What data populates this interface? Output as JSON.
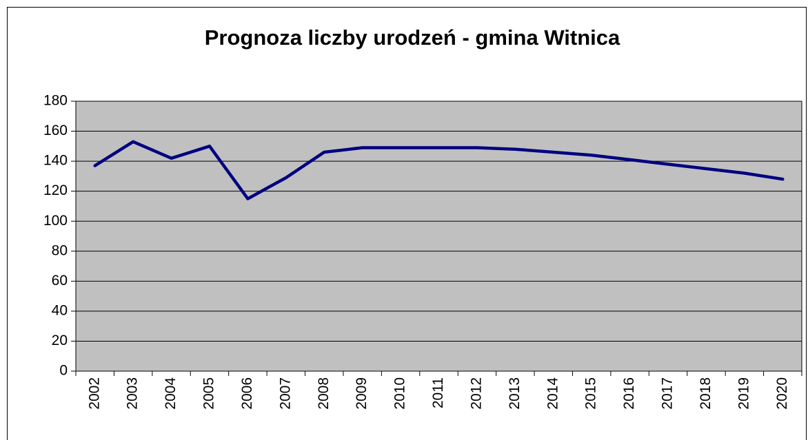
{
  "chart_data": {
    "type": "line",
    "title": "Prognoza liczby urodzeń - gmina Witnica",
    "categories": [
      "2002",
      "2003",
      "2004",
      "2005",
      "2006",
      "2007",
      "2008",
      "2009",
      "2010",
      "2011",
      "2012",
      "2013",
      "2014",
      "2015",
      "2016",
      "2017",
      "2018",
      "2019",
      "2020"
    ],
    "values": [
      137,
      153,
      142,
      150,
      115,
      129,
      146,
      149,
      149,
      149,
      149,
      148,
      146,
      144,
      141,
      138,
      135,
      132,
      128
    ],
    "color": "#000080",
    "ylim": [
      0,
      180
    ],
    "yticks": [
      0,
      20,
      40,
      60,
      80,
      100,
      120,
      140,
      160,
      180
    ],
    "grid": true
  }
}
